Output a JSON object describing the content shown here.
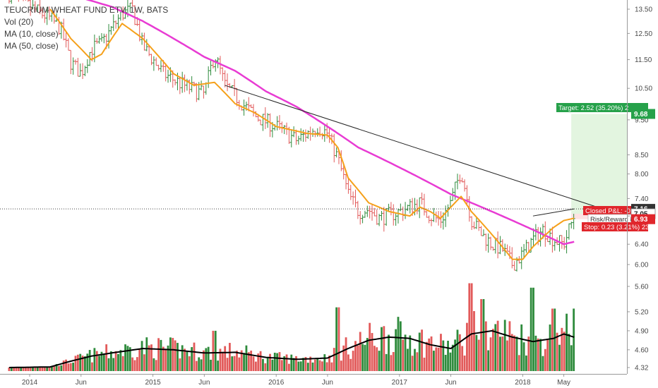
{
  "legend": {
    "title": "TEUCRIUM WHEAT FUND ETV, 1W, BATS",
    "vol": "Vol (20)",
    "ma10": "MA (10, close)",
    "ma50": "MA (50, close)"
  },
  "colors": {
    "up": "#2e8b3c",
    "down": "#e25a5a",
    "ma10": "#f5a01a",
    "ma50": "#e83bd3",
    "vol_ma": "#000000",
    "target_zone": "#e3f5e0",
    "target_badge": "#26a14a",
    "stop_badge": "#e0262c"
  },
  "chart_data": {
    "type": "candlestick",
    "x_tick_labels": [
      "2014",
      "Jun",
      "2015",
      "Jun",
      "2016",
      "Jun",
      "2017",
      "Jun",
      "2018",
      "May"
    ],
    "y_tick_labels": [
      "13.50",
      "12.50",
      "11.50",
      "10.50",
      "9.50",
      "8.50",
      "8.00",
      "7.40",
      "7.00",
      "6.40",
      "6.00",
      "5.60",
      "5.20",
      "4.90",
      "4.60",
      "4.32"
    ],
    "y_badges": [
      {
        "label": "9.68",
        "kind": "target"
      },
      {
        "label": "7.16",
        "kind": "last"
      },
      {
        "label": "7.05",
        "kind": "entry"
      },
      {
        "label": "6.93",
        "kind": "stop"
      }
    ],
    "annotations": {
      "target": "Target: 2.52 (35.20%) 2",
      "closed_pnl": "Closed P&L: -0.",
      "risk_reward": "Risk/Reward R",
      "stop": "Stop: 0.23 (3.21%) 23"
    },
    "price_anchors": [
      {
        "x": "2013-11",
        "y": 14.2
      },
      {
        "x": "2014-01",
        "y": 13.6
      },
      {
        "x": "2014-03",
        "y": 13.1
      },
      {
        "x": "2014-04",
        "y": 12.7
      },
      {
        "x": "2014-05",
        "y": 11.4
      },
      {
        "x": "2014-06",
        "y": 11.0
      },
      {
        "x": "2014-07",
        "y": 11.9
      },
      {
        "x": "2014-08",
        "y": 12.1
      },
      {
        "x": "2014-10",
        "y": 13.3
      },
      {
        "x": "2014-11",
        "y": 13.5
      },
      {
        "x": "2014-12",
        "y": 12.0
      },
      {
        "x": "2015-02",
        "y": 11.0
      },
      {
        "x": "2015-04",
        "y": 10.6
      },
      {
        "x": "2015-06",
        "y": 10.3
      },
      {
        "x": "2015-07",
        "y": 11.7
      },
      {
        "x": "2015-08",
        "y": 10.6
      },
      {
        "x": "2015-10",
        "y": 9.9
      },
      {
        "x": "2015-11",
        "y": 9.6
      },
      {
        "x": "2016-01",
        "y": 9.3
      },
      {
        "x": "2016-03",
        "y": 8.9
      },
      {
        "x": "2016-05",
        "y": 9.3
      },
      {
        "x": "2016-06",
        "y": 9.1
      },
      {
        "x": "2016-07",
        "y": 8.4
      },
      {
        "x": "2016-08",
        "y": 7.5
      },
      {
        "x": "2016-09",
        "y": 7.1
      },
      {
        "x": "2016-10",
        "y": 7.15
      },
      {
        "x": "2016-11",
        "y": 6.95
      },
      {
        "x": "2017-01",
        "y": 7.1
      },
      {
        "x": "2017-03",
        "y": 7.3
      },
      {
        "x": "2017-04",
        "y": 7.0
      },
      {
        "x": "2017-05",
        "y": 6.9
      },
      {
        "x": "2017-06",
        "y": 7.3
      },
      {
        "x": "2017-07",
        "y": 8.1
      },
      {
        "x": "2017-08",
        "y": 6.9
      },
      {
        "x": "2017-09",
        "y": 6.6
      },
      {
        "x": "2017-10",
        "y": 6.4
      },
      {
        "x": "2017-11",
        "y": 6.3
      },
      {
        "x": "2017-12",
        "y": 6.0
      },
      {
        "x": "2018-01",
        "y": 6.2
      },
      {
        "x": "2018-02",
        "y": 6.5
      },
      {
        "x": "2018-03",
        "y": 6.7
      },
      {
        "x": "2018-04",
        "y": 6.5
      },
      {
        "x": "2018-05",
        "y": 6.4
      },
      {
        "x": "2018-06",
        "y": 7.0
      }
    ],
    "ma10_anchors": [
      {
        "x": "2014-03",
        "y": 13.5
      },
      {
        "x": "2014-05",
        "y": 12.3
      },
      {
        "x": "2014-07",
        "y": 11.5
      },
      {
        "x": "2014-08",
        "y": 11.7
      },
      {
        "x": "2014-10",
        "y": 12.9
      },
      {
        "x": "2014-12",
        "y": 12.3
      },
      {
        "x": "2015-03",
        "y": 11.0
      },
      {
        "x": "2015-05",
        "y": 10.6
      },
      {
        "x": "2015-07",
        "y": 10.7
      },
      {
        "x": "2015-09",
        "y": 10.0
      },
      {
        "x": "2015-11",
        "y": 9.7
      },
      {
        "x": "2016-01",
        "y": 9.3
      },
      {
        "x": "2016-04",
        "y": 9.1
      },
      {
        "x": "2016-06",
        "y": 9.05
      },
      {
        "x": "2016-07",
        "y": 8.7
      },
      {
        "x": "2016-08",
        "y": 7.9
      },
      {
        "x": "2016-10",
        "y": 7.3
      },
      {
        "x": "2016-12",
        "y": 7.1
      },
      {
        "x": "2017-02",
        "y": 7.0
      },
      {
        "x": "2017-03",
        "y": 7.2
      },
      {
        "x": "2017-04",
        "y": 7.1
      },
      {
        "x": "2017-05",
        "y": 6.95
      },
      {
        "x": "2017-06",
        "y": 7.2
      },
      {
        "x": "2017-07",
        "y": 7.45
      },
      {
        "x": "2017-08",
        "y": 7.1
      },
      {
        "x": "2017-10",
        "y": 6.6
      },
      {
        "x": "2017-12",
        "y": 6.1
      },
      {
        "x": "2018-01",
        "y": 6.1
      },
      {
        "x": "2018-02",
        "y": 6.35
      },
      {
        "x": "2018-04",
        "y": 6.75
      },
      {
        "x": "2018-05",
        "y": 6.9
      },
      {
        "x": "2018-06",
        "y": 6.95
      }
    ],
    "ma50_anchors": [
      {
        "x": "2014-06",
        "y": 14.0
      },
      {
        "x": "2014-09",
        "y": 13.6
      },
      {
        "x": "2014-12",
        "y": 13.0
      },
      {
        "x": "2015-03",
        "y": 12.3
      },
      {
        "x": "2015-06",
        "y": 11.6
      },
      {
        "x": "2015-09",
        "y": 11.1
      },
      {
        "x": "2015-12",
        "y": 10.4
      },
      {
        "x": "2016-03",
        "y": 9.9
      },
      {
        "x": "2016-06",
        "y": 9.3
      },
      {
        "x": "2016-09",
        "y": 8.7
      },
      {
        "x": "2016-12",
        "y": 8.3
      },
      {
        "x": "2017-03",
        "y": 7.9
      },
      {
        "x": "2017-06",
        "y": 7.5
      },
      {
        "x": "2017-09",
        "y": 7.2
      },
      {
        "x": "2017-12",
        "y": 6.9
      },
      {
        "x": "2018-03",
        "y": 6.6
      },
      {
        "x": "2018-05",
        "y": 6.4
      },
      {
        "x": "2018-06",
        "y": 6.45
      }
    ],
    "trendlines": [
      {
        "x1": "2015-08",
        "y1": 10.6,
        "x2": "2018-08",
        "y2": 7.22
      },
      {
        "x1": "2018-02",
        "y1": 7.0,
        "x2": "2018-06",
        "y2": 7.16
      }
    ],
    "horizontal_lines": [
      7.16
    ],
    "volume_anchors": [
      {
        "x": "2013-11",
        "y": 4.32
      },
      {
        "x": "2014-03",
        "y": 4.33
      },
      {
        "x": "2014-05",
        "y": 4.42
      },
      {
        "x": "2014-07",
        "y": 4.5
      },
      {
        "x": "2014-09",
        "y": 4.55
      },
      {
        "x": "2014-12",
        "y": 4.62
      },
      {
        "x": "2015-03",
        "y": 4.6
      },
      {
        "x": "2015-06",
        "y": 4.55
      },
      {
        "x": "2015-09",
        "y": 4.56
      },
      {
        "x": "2015-12",
        "y": 4.48
      },
      {
        "x": "2016-03",
        "y": 4.45
      },
      {
        "x": "2016-06",
        "y": 4.47
      },
      {
        "x": "2016-08",
        "y": 4.62
      },
      {
        "x": "2016-10",
        "y": 4.75
      },
      {
        "x": "2016-12",
        "y": 4.8
      },
      {
        "x": "2017-02",
        "y": 4.78
      },
      {
        "x": "2017-04",
        "y": 4.68
      },
      {
        "x": "2017-06",
        "y": 4.62
      },
      {
        "x": "2017-08",
        "y": 4.85
      },
      {
        "x": "2017-10",
        "y": 4.9
      },
      {
        "x": "2017-12",
        "y": 4.8
      },
      {
        "x": "2018-02",
        "y": 4.73
      },
      {
        "x": "2018-04",
        "y": 4.78
      },
      {
        "x": "2018-05",
        "y": 4.85
      },
      {
        "x": "2018-06",
        "y": 4.8
      }
    ],
    "volume_spikes": [
      {
        "x": "2015-07",
        "y": 4.9
      },
      {
        "x": "2016-07",
        "y": 5.27
      },
      {
        "x": "2017-08",
        "y": 5.65
      },
      {
        "x": "2017-09",
        "y": 5.4
      },
      {
        "x": "2018-02",
        "y": 5.58
      },
      {
        "x": "2018-04",
        "y": 5.25
      },
      {
        "x": "2018-06",
        "y": 5.25
      }
    ],
    "target_zone": {
      "x_start": "2018-06",
      "x_end": "2018-08",
      "y_top": 9.68,
      "y_bottom": 7.05
    }
  }
}
